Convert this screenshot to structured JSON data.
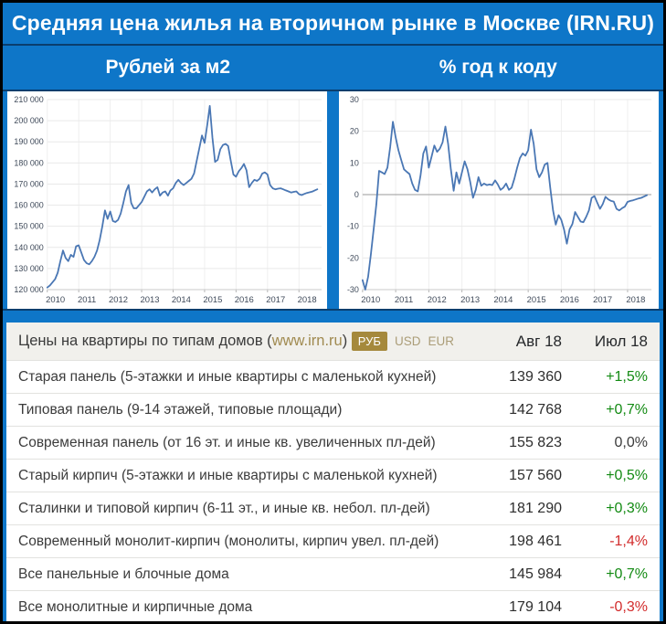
{
  "title": "Средняя цена жилья на вторичном рынке в Москве (IRN.RU)",
  "subtitles": {
    "left": "Рублей за м2",
    "right": "% год к коду"
  },
  "colors": {
    "background": "#0e76c8",
    "divider": "#0a3e6e",
    "line": "#4a77b4",
    "up": "#128a12",
    "down": "#d22b2b",
    "flat": "#3b3b3b",
    "link": "#a08a50",
    "badge_active_bg": "#a5893c",
    "badge_inactive_text": "#ab9d78"
  },
  "chart_data": [
    {
      "type": "line",
      "title": "Рублей за м2",
      "xlabel": "",
      "ylabel": "",
      "x_start": 2010,
      "points_per_year": 12,
      "xlim": [
        2010,
        2018.72
      ],
      "ylim": [
        120000,
        210000
      ],
      "x_ticks": [
        2010,
        2011,
        2012,
        2013,
        2014,
        2015,
        2016,
        2017,
        2018
      ],
      "x_tick_labels": [
        "2010",
        "2011",
        "2012",
        "2013",
        "2014",
        "2015",
        "2016",
        "2017",
        "2018"
      ],
      "y_ticks": [
        120000,
        130000,
        140000,
        150000,
        160000,
        170000,
        180000,
        190000,
        200000,
        210000
      ],
      "y_tick_labels": [
        "120 000",
        "130 000",
        "140 000",
        "150 000",
        "160 000",
        "170 000",
        "180 000",
        "190 000",
        "200 000",
        "210 000"
      ],
      "zero_line": false,
      "grid": true,
      "margin": {
        "l": 44,
        "r": 6,
        "t": 9,
        "b": 21
      },
      "values": [
        121000,
        122000,
        123500,
        125000,
        128000,
        133500,
        138500,
        135000,
        133500,
        136500,
        135500,
        140500,
        141000,
        137500,
        134000,
        132500,
        132000,
        133500,
        135500,
        138500,
        143500,
        150000,
        157500,
        153500,
        157000,
        152500,
        152000,
        153000,
        156000,
        161000,
        166500,
        169500,
        161000,
        158500,
        158500,
        160000,
        161500,
        164000,
        166500,
        167500,
        166000,
        167500,
        168500,
        164500,
        166000,
        166500,
        164500,
        167000,
        168000,
        170500,
        172000,
        170500,
        169500,
        170500,
        171500,
        172500,
        175000,
        181000,
        187000,
        193000,
        189500,
        198000,
        207000,
        192000,
        180500,
        181500,
        186500,
        188500,
        189000,
        188000,
        181000,
        174500,
        173500,
        176000,
        177500,
        179500,
        176500,
        168500,
        170500,
        172000,
        171500,
        172500,
        175000,
        175500,
        174500,
        169500,
        168000,
        167500,
        167800,
        168000,
        167500,
        167000,
        166500,
        166000,
        166300,
        166500,
        165200,
        164800,
        165300,
        165800,
        166100,
        166400,
        167000,
        167500
      ]
    },
    {
      "type": "line",
      "title": "% год к коду",
      "xlabel": "",
      "ylabel": "",
      "x_start": 2010,
      "points_per_year": 12,
      "xlim": [
        2010,
        2018.72
      ],
      "ylim": [
        -30,
        30
      ],
      "x_ticks": [
        2010,
        2011,
        2012,
        2013,
        2014,
        2015,
        2016,
        2017,
        2018
      ],
      "x_tick_labels": [
        "2010",
        "2011",
        "2012",
        "2013",
        "2014",
        "2015",
        "2016",
        "2017",
        "2018"
      ],
      "y_ticks": [
        -30,
        -20,
        -10,
        0,
        10,
        20,
        30
      ],
      "y_tick_labels": [
        "-30",
        "-20",
        "-10",
        "0",
        "10",
        "20",
        "30"
      ],
      "zero_line": true,
      "grid": true,
      "margin": {
        "l": 26,
        "r": 8,
        "t": 9,
        "b": 21
      },
      "values": [
        -27,
        -30,
        -26,
        -19,
        -11,
        -3,
        7.5,
        7,
        6.5,
        8.5,
        15,
        23,
        18,
        14,
        11,
        8,
        7.2,
        6.5,
        3.5,
        1.5,
        1,
        6,
        13,
        15.2,
        8.5,
        12,
        15.5,
        13.5,
        14.5,
        16.5,
        21.5,
        16,
        8,
        1.2,
        7,
        3.5,
        7,
        10.5,
        8,
        4,
        -1,
        1.5,
        5.5,
        2.8,
        3.5,
        3,
        3.2,
        3,
        4.5,
        3.2,
        1.5,
        2.2,
        3.5,
        1.5,
        2.2,
        5,
        8.5,
        11.5,
        13,
        12.3,
        14,
        20.5,
        16,
        8,
        5.5,
        7,
        9.5,
        10,
        2,
        -5,
        -9.5,
        -6.5,
        -8,
        -11,
        -15.5,
        -11,
        -9.3,
        -5.5,
        -7,
        -8.5,
        -8.7,
        -7,
        -5,
        -1,
        -0.5,
        -2.5,
        -4.5,
        -3,
        -0.7,
        -1.5,
        -2,
        -2.2,
        -4.5,
        -5,
        -4.3,
        -3.8,
        -2.3,
        -2,
        -1.8,
        -1.5,
        -1.2,
        -1,
        -0.6,
        -0.2
      ]
    }
  ],
  "table": {
    "header": {
      "title_prefix": "Цены на квартиры по типам домов (",
      "link_text": "www.irn.ru",
      "title_suffix": ")",
      "currency_active": "РУБ",
      "currency_options": [
        "USD",
        "EUR"
      ],
      "col_current": "Авг 18",
      "col_previous": "Июл 18"
    },
    "rows": [
      {
        "label": "Старая панель (5-этажки и иные квартиры с маленькой кухней)",
        "price": "139 360",
        "change": "+1,5%",
        "trend": "up"
      },
      {
        "label": "Типовая панель (9-14 этажей, типовые площади)",
        "price": "142 768",
        "change": "+0,7%",
        "trend": "up"
      },
      {
        "label": "Современная панель (от 16 эт. и иные кв. увеличенных пл-дей)",
        "price": "155 823",
        "change": "0,0%",
        "trend": "flat"
      },
      {
        "label": "Старый кирпич (5-этажки и иные квартиры с маленькой кухней)",
        "price": "157 560",
        "change": "+0,5%",
        "trend": "up"
      },
      {
        "label": "Сталинки и типовой кирпич (6-11 эт., и иные кв. небол. пл-дей)",
        "price": "181 290",
        "change": "+0,3%",
        "trend": "up"
      },
      {
        "label": "Современный монолит-кирпич (монолиты, кирпич увел. пл-дей)",
        "price": "198 461",
        "change": "-1,4%",
        "trend": "down"
      },
      {
        "label": "Все панельные и блочные дома",
        "price": "145 984",
        "change": "+0,7%",
        "trend": "up"
      },
      {
        "label": "Все монолитные и кирпичные дома",
        "price": "179 104",
        "change": "-0,3%",
        "trend": "down"
      }
    ]
  }
}
